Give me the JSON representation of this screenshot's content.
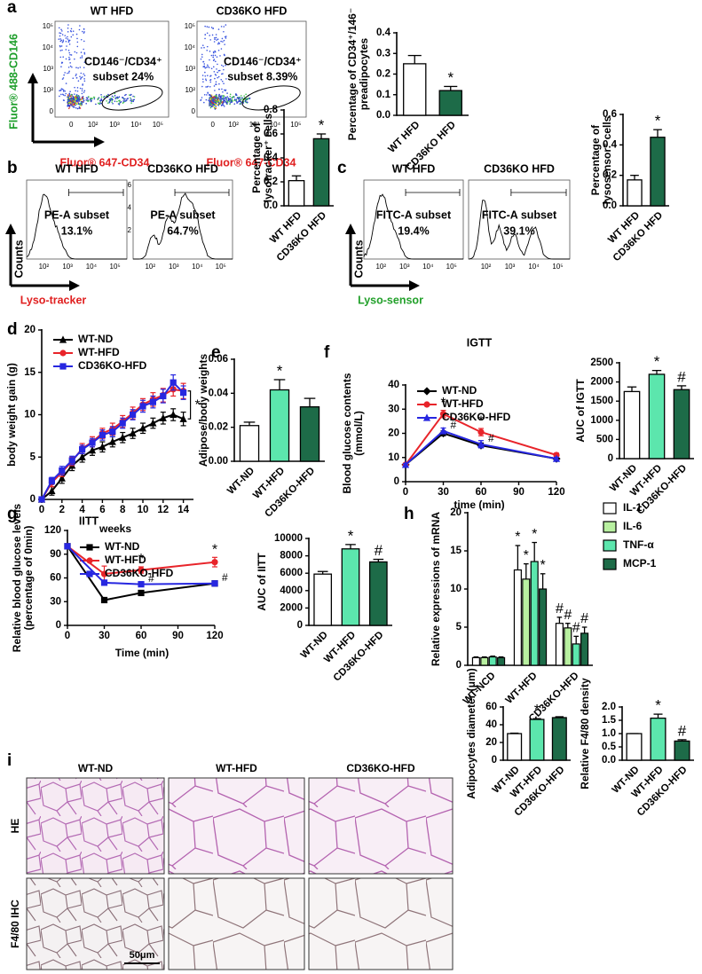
{
  "panel_labels": [
    "a",
    "b",
    "c",
    "d",
    "e",
    "f",
    "g",
    "h",
    "i"
  ],
  "flow": {
    "a": {
      "y_label": "Fluor® 488-CD146",
      "x_label": "Fluor® 647-CD34",
      "x_ticks": [
        "0",
        "10²",
        "10³",
        "10⁴",
        "10⁵"
      ],
      "y_ticks": [
        "0",
        "10²",
        "10³",
        "10⁴",
        "10⁵"
      ],
      "plots": [
        {
          "title": "WT HFD",
          "gate": [
            "CD146⁻/CD34⁺",
            "subset 24%"
          ]
        },
        {
          "title": "CD36KO HFD",
          "gate": [
            "CD146⁻/CD34⁺",
            "subset 8.39%"
          ]
        }
      ]
    },
    "b": {
      "y_label": "Counts",
      "x_label": "Lyso-tracker",
      "x_ticks": [
        "10²",
        "10³",
        "10⁴",
        "10⁵"
      ],
      "plots": [
        {
          "title": "WT HFD",
          "gate": [
            "PE-A subset",
            "13.1%"
          ]
        },
        {
          "title": "CD36KO HFD",
          "gate": [
            "PE-A subset",
            "64.7%"
          ],
          "y_ticks": [
            "6",
            "4",
            "2"
          ]
        }
      ]
    },
    "c": {
      "y_label": "Counts",
      "x_label": "Lyso-sensor",
      "x_ticks": [
        "10²",
        "10³",
        "10⁴",
        "10⁵"
      ],
      "plots": [
        {
          "title": "WT HFD",
          "gate": [
            "FITC-A subset",
            "19.4%"
          ]
        },
        {
          "title": "CD36KO HFD",
          "gate": [
            "FITC-A subset",
            "39.1%"
          ]
        }
      ]
    }
  },
  "chart_data": [
    {
      "type": "bar",
      "y_label": [
        "Percentage of CD34⁺/146⁻",
        "preadipocytes"
      ],
      "categories": [
        "WT HFD",
        "CD36KO HFD"
      ],
      "values": [
        0.25,
        0.12
      ],
      "errors": [
        0.04,
        0.02
      ],
      "sig": [
        null,
        "*"
      ],
      "colors": [
        "#ffffff",
        "#1d6b48"
      ],
      "ylim": [
        0,
        0.4
      ],
      "yticks": [
        {
          "value": 0,
          "label": "0.0"
        },
        0.1,
        0.2,
        0.3,
        0.4
      ]
    },
    {
      "type": "bar",
      "y_label": [
        "Percentage of",
        "lysotracker⁺ cells"
      ],
      "categories": [
        "WT HFD",
        "CD36KO HFD"
      ],
      "values": [
        0.21,
        0.56
      ],
      "errors": [
        0.04,
        0.04
      ],
      "sig": [
        null,
        "*"
      ],
      "colors": [
        "#ffffff",
        "#1d6b48"
      ],
      "ylim": [
        0,
        0.8
      ],
      "yticks": [
        {
          "value": 0,
          "label": "0.0"
        },
        0.2,
        0.4,
        0.6,
        0.8
      ]
    },
    {
      "type": "bar",
      "y_label": [
        "Percentage of",
        "lysosensor⁺ cells"
      ],
      "categories": [
        "WT HFD",
        "CD36KO HFD"
      ],
      "values": [
        0.17,
        0.45
      ],
      "errors": [
        0.03,
        0.05
      ],
      "sig": [
        null,
        "*"
      ],
      "colors": [
        "#ffffff",
        "#1d6b48"
      ],
      "ylim": [
        0,
        0.6
      ],
      "yticks": [
        {
          "value": 0,
          "label": "0.0"
        },
        0.2,
        0.4,
        0.6
      ]
    },
    {
      "type": "line",
      "y_label": [
        "body weight gain (g)"
      ],
      "x_label": "weeks",
      "annotation": "*",
      "x": [
        0,
        1,
        2,
        3,
        4,
        5,
        6,
        7,
        8,
        9,
        10,
        11,
        12,
        13,
        14
      ],
      "xlim": [
        0,
        15
      ],
      "xticks": [
        0,
        2,
        4,
        6,
        8,
        10,
        12,
        14
      ],
      "ylim": [
        0,
        20
      ],
      "yticks": [
        0,
        5,
        10,
        15,
        20
      ],
      "series": [
        {
          "name": "WT-ND",
          "color": "#000000",
          "marker": "triangle",
          "values": [
            0,
            1,
            2.5,
            4,
            5,
            5.8,
            6.2,
            6.8,
            7.3,
            7.8,
            8.4,
            9,
            9.6,
            10,
            9.5
          ],
          "errors": [
            0,
            0.5,
            0.6,
            0.6,
            0.6,
            0.6,
            0.6,
            0.6,
            0.6,
            0.6,
            0.6,
            0.6,
            0.7,
            0.7,
            0.8
          ]
        },
        {
          "name": "WT-HFD",
          "color": "#e8242a",
          "marker": "circle",
          "values": [
            0,
            2,
            3.2,
            4.5,
            6,
            6.8,
            7.8,
            8.3,
            9.2,
            10.2,
            11.2,
            11.8,
            12.3,
            13,
            12.8
          ],
          "errors": [
            0,
            0.5,
            0.5,
            0.5,
            0.6,
            0.6,
            0.6,
            0.7,
            0.7,
            0.7,
            0.7,
            0.8,
            0.8,
            0.8,
            0.9
          ]
        },
        {
          "name": "CD36KO-HFD",
          "color": "#2727e0",
          "marker": "square",
          "values": [
            0,
            2.2,
            3.4,
            4.6,
            5.9,
            6.7,
            7.6,
            8,
            9,
            10,
            11,
            11.5,
            12.2,
            13.8,
            12.6
          ],
          "errors": [
            0,
            0.4,
            0.5,
            0.5,
            0.5,
            0.5,
            0.6,
            0.6,
            0.6,
            0.6,
            0.7,
            0.7,
            0.8,
            0.9,
            0.8
          ]
        }
      ]
    },
    {
      "type": "bar",
      "y_label": [
        "Adipose/body weights"
      ],
      "categories": [
        "WT-ND",
        "WT-HFD",
        "CD36KO-HFD"
      ],
      "values": [
        0.021,
        0.042,
        0.032
      ],
      "errors": [
        0.002,
        0.006,
        0.005
      ],
      "sig": [
        null,
        "*",
        null
      ],
      "colors": [
        "#ffffff",
        "#5ce6ad",
        "#1d6b48"
      ],
      "ylim": [
        0,
        0.06
      ],
      "yticks": [
        {
          "value": 0,
          "label": "0.00"
        },
        0.02,
        0.04,
        0.06
      ]
    },
    {
      "type": "line",
      "title": "IGTT",
      "y_label": [
        "Blood glucose contents",
        "(mmol/L)"
      ],
      "x_label": "time (min)",
      "x": [
        0,
        30,
        60,
        120
      ],
      "xlim": [
        0,
        120
      ],
      "xticks": [
        0,
        30,
        60,
        90,
        120
      ],
      "ylim": [
        0,
        40
      ],
      "yticks": [
        0,
        10,
        20,
        30,
        40
      ],
      "series": [
        {
          "name": "WT-ND",
          "color": "#000000",
          "marker": "diamond",
          "values": [
            7,
            20,
            15,
            9.5
          ],
          "errors": [
            0.5,
            1,
            1,
            0.5
          ]
        },
        {
          "name": "WT-HFD",
          "color": "#e8242a",
          "marker": "circle",
          "values": [
            7,
            28,
            20.5,
            11
          ],
          "errors": [
            0.5,
            1.5,
            1.5,
            0.8
          ],
          "sig": [
            null,
            "*",
            "*",
            null
          ]
        },
        {
          "name": "CD36KO-HFD",
          "color": "#2727e0",
          "marker": "triangle",
          "values": [
            7,
            21,
            15.5,
            9.5
          ],
          "errors": [
            0.5,
            1.2,
            1.5,
            0.6
          ],
          "sig": [
            null,
            "#",
            "#",
            null
          ]
        }
      ]
    },
    {
      "type": "bar",
      "y_label": [
        "AUC of IGTT"
      ],
      "categories": [
        "WT-ND",
        "WT-HFD",
        "CD36KO-HFD"
      ],
      "values": [
        1750,
        2200,
        1800
      ],
      "errors": [
        120,
        100,
        100
      ],
      "sig": [
        null,
        "*",
        "#"
      ],
      "colors": [
        "#ffffff",
        "#5ce6ad",
        "#1d6b48"
      ],
      "ylim": [
        0,
        2500
      ],
      "yticks": [
        0,
        500,
        1000,
        1500,
        2000,
        2500
      ]
    },
    {
      "type": "line",
      "title": "IITT",
      "y_label": [
        "Relative blood glucose levels",
        "(percentage of 0min)"
      ],
      "x_label": "Time (min)",
      "x": [
        0,
        30,
        60,
        120
      ],
      "xlim": [
        0,
        120
      ],
      "xticks": [
        0,
        30,
        60,
        90,
        120
      ],
      "ylim": [
        0,
        120
      ],
      "yticks": [
        0,
        30,
        60,
        90,
        120
      ],
      "series": [
        {
          "name": "WT-ND",
          "color": "#000000",
          "marker": "square",
          "values": [
            100,
            32,
            41,
            53
          ],
          "errors": [
            2,
            1,
            3,
            3
          ]
        },
        {
          "name": "WT-HFD",
          "color": "#e8242a",
          "marker": "circle",
          "values": [
            100,
            65,
            70,
            80
          ],
          "errors": [
            2,
            10,
            4,
            6
          ],
          "sig": [
            null,
            null,
            "*",
            "*"
          ]
        },
        {
          "name": "CD36KO-HFD",
          "color": "#2727e0",
          "marker": "square",
          "values": [
            100,
            54,
            52,
            53
          ],
          "errors": [
            2,
            3,
            2,
            3
          ],
          "sig": [
            null,
            null,
            "#",
            "#"
          ]
        }
      ]
    },
    {
      "type": "bar",
      "y_label": [
        "AUC of IITT"
      ],
      "categories": [
        "WT-ND",
        "WT-HFD",
        "CD36KO-HFD"
      ],
      "values": [
        5900,
        8800,
        7300
      ],
      "errors": [
        300,
        500,
        300
      ],
      "sig": [
        null,
        "*",
        "#"
      ],
      "colors": [
        "#ffffff",
        "#5ce6ad",
        "#1d6b48"
      ],
      "ylim": [
        0,
        10000
      ],
      "yticks": [
        0,
        2000,
        4000,
        6000,
        8000,
        10000
      ]
    },
    {
      "type": "grouped_bar",
      "y_label": [
        "Relative  expressions of mRNA"
      ],
      "categories": [
        "WT-NCD",
        "WT-HFD",
        "CD36KO-HFD"
      ],
      "ylim": [
        0,
        20
      ],
      "yticks": [
        0,
        5,
        10,
        15,
        20
      ],
      "series": [
        {
          "name": "IL-1",
          "color": "#ffffff",
          "values": [
            1,
            12.5,
            5.5
          ],
          "errors": [
            0.1,
            3.2,
            0.8
          ],
          "sig": [
            null,
            "*",
            "#"
          ]
        },
        {
          "name": "IL-6",
          "color": "#b8f0a0",
          "values": [
            1,
            11.3,
            4.9
          ],
          "errors": [
            0.1,
            2,
            0.6
          ],
          "sig": [
            null,
            "*",
            "#"
          ]
        },
        {
          "name": "TNF-α",
          "color": "#5ce6ad",
          "values": [
            1.1,
            13.6,
            2.8
          ],
          "errors": [
            0.1,
            2.5,
            1
          ],
          "sig": [
            null,
            "*",
            "#"
          ]
        },
        {
          "name": "MCP-1",
          "color": "#1d6b48",
          "values": [
            1,
            10,
            4.2
          ],
          "errors": [
            0.1,
            2,
            0.8
          ],
          "sig": [
            null,
            "*",
            "#"
          ]
        }
      ]
    },
    {
      "type": "bar",
      "y_label": [
        "Adipocytes diameter (μm)"
      ],
      "categories": [
        "WT-ND",
        "WT-HFD",
        "CD36KO-HFD"
      ],
      "values": [
        30,
        46,
        48
      ],
      "errors": [
        0.5,
        0.8,
        1
      ],
      "sig": [
        null,
        "*",
        null
      ],
      "colors": [
        "#ffffff",
        "#5ce6ad",
        "#1d6b48"
      ],
      "ylim": [
        0,
        60
      ],
      "yticks": [
        0,
        20,
        40,
        60
      ]
    },
    {
      "type": "bar",
      "y_label": [
        "Relative F4/80 density"
      ],
      "categories": [
        "WT-ND",
        "WT-HFD",
        "CD36KO-HFD"
      ],
      "values": [
        1.0,
        1.58,
        0.72
      ],
      "errors": [
        0,
        0.15,
        0.05
      ],
      "sig": [
        null,
        "*",
        "#"
      ],
      "colors": [
        "#ffffff",
        "#5ce6ad",
        "#1d6b48"
      ],
      "ylim": [
        0,
        2.0
      ],
      "yticks": [
        {
          "value": 0,
          "label": "0.0"
        },
        0.5,
        {
          "value": 1.0,
          "label": "1.0"
        },
        1.5,
        {
          "value": 2.0,
          "label": "2.0"
        }
      ]
    }
  ],
  "micrographs": {
    "columns": [
      "WT-ND",
      "WT-HFD",
      "CD36KO-HFD"
    ],
    "rows": [
      "HE",
      "F4/80 IHC"
    ],
    "scale_bar": "50μm"
  }
}
